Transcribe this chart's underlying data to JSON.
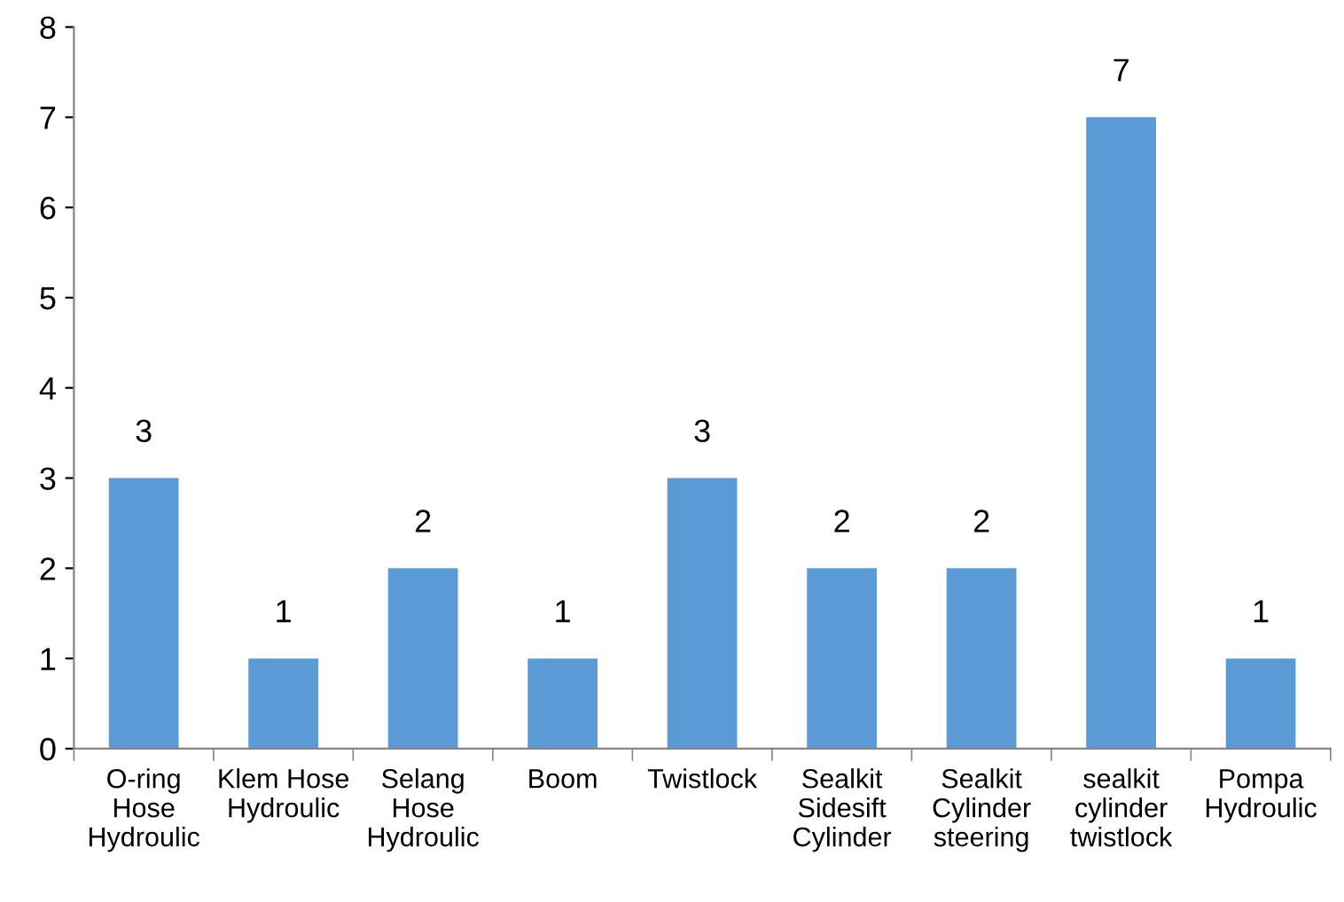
{
  "chart_data": {
    "type": "bar",
    "categories": [
      "O-ring Hose Hydroulic",
      "Klem Hose Hydroulic",
      "Selang Hose Hydroulic",
      "Boom",
      "Twistlock",
      "Sealkit Sidesift Cylinder",
      "Sealkit Cylinder steering",
      "sealkit cylinder twistlock",
      "Pompa Hydroulic"
    ],
    "values": [
      3,
      1,
      2,
      1,
      3,
      2,
      2,
      7,
      1
    ],
    "color": "#5b9bd5",
    "ylim": [
      0,
      8
    ],
    "yticks": [
      0,
      1,
      2,
      3,
      4,
      5,
      6,
      7,
      8
    ],
    "grid": false,
    "data_labels": true
  }
}
